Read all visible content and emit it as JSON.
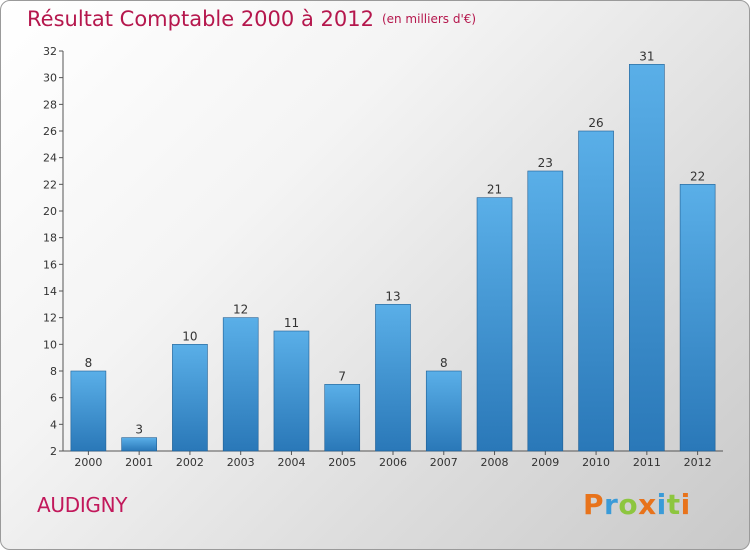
{
  "chart_data": {
    "type": "bar",
    "title": "Résultat Comptable 2000 à 2012",
    "unit_note": "(en milliers d'€)",
    "categories": [
      "2000",
      "2001",
      "2002",
      "2003",
      "2004",
      "2005",
      "2006",
      "2007",
      "2008",
      "2009",
      "2010",
      "2011",
      "2012"
    ],
    "values": [
      8,
      3,
      10,
      12,
      11,
      7,
      13,
      8,
      21,
      23,
      26,
      31,
      22
    ],
    "xlabel": "",
    "ylabel": "",
    "ylim": [
      2,
      32
    ],
    "yticks": [
      2,
      4,
      6,
      8,
      10,
      12,
      14,
      16,
      18,
      20,
      22,
      24,
      26,
      28,
      30,
      32
    ],
    "grid": false,
    "legend": "none"
  },
  "commune": "AUDIGNY",
  "logo": {
    "letters": [
      "P",
      "r",
      "o",
      "x",
      "i",
      "t",
      "i"
    ],
    "colors": [
      "#e8731b",
      "#3a9bd8",
      "#8dc63f",
      "#e8731b",
      "#3a9bd8",
      "#8dc63f",
      "#e8731b"
    ]
  },
  "colors": {
    "title": "#b5174d",
    "bar_top": "#5aafe8",
    "bar_bottom": "#2a78b8",
    "bar_edge": "#1f5e93"
  }
}
